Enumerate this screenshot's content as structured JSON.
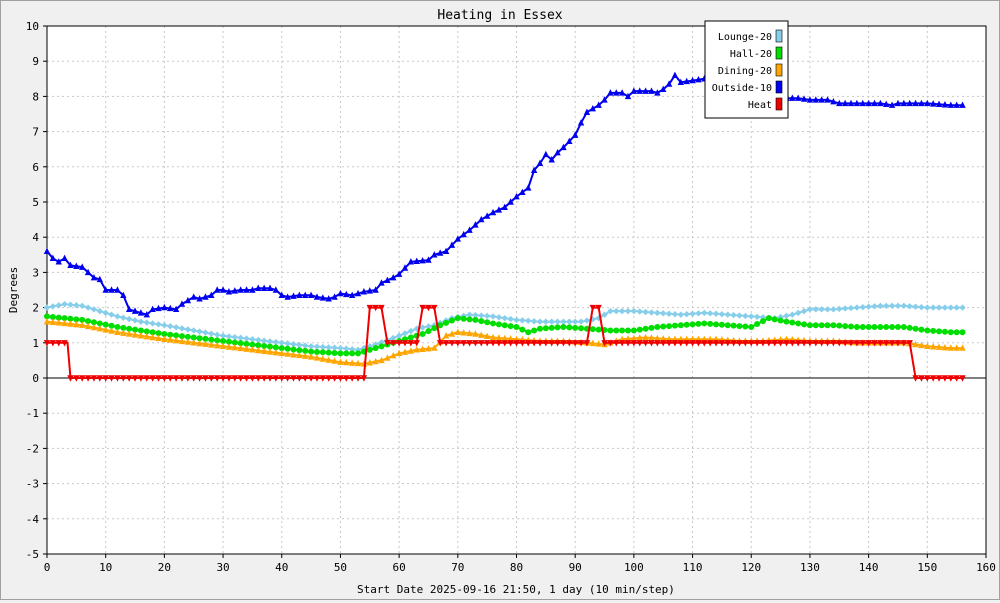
{
  "chart_data": {
    "type": "line",
    "title": "Heating in Essex",
    "xlabel": "Start Date 2025-09-16 21:50, 1 day (10 min/step)",
    "ylabel": "Degrees",
    "xlim": [
      0,
      160
    ],
    "ylim": [
      -5,
      10
    ],
    "xticks": [
      0,
      10,
      20,
      30,
      40,
      50,
      60,
      70,
      80,
      90,
      100,
      110,
      120,
      130,
      140,
      150,
      160
    ],
    "yticks": [
      -5,
      -4,
      -3,
      -2,
      -1,
      0,
      1,
      2,
      3,
      4,
      5,
      6,
      7,
      8,
      9,
      10
    ],
    "grid": true,
    "legend_position": "top-right",
    "series": [
      {
        "name": "Lounge-20",
        "color": "#87ceeb",
        "marker": "diamond",
        "points": [
          [
            0,
            2.0
          ],
          [
            3,
            2.1
          ],
          [
            6,
            2.05
          ],
          [
            9,
            1.9
          ],
          [
            12,
            1.75
          ],
          [
            16,
            1.6
          ],
          [
            20,
            1.5
          ],
          [
            25,
            1.35
          ],
          [
            30,
            1.2
          ],
          [
            35,
            1.1
          ],
          [
            40,
            1.0
          ],
          [
            45,
            0.9
          ],
          [
            50,
            0.85
          ],
          [
            53,
            0.8
          ],
          [
            56,
            0.95
          ],
          [
            60,
            1.2
          ],
          [
            63,
            1.4
          ],
          [
            66,
            1.5
          ],
          [
            69,
            1.7
          ],
          [
            72,
            1.8
          ],
          [
            76,
            1.75
          ],
          [
            80,
            1.65
          ],
          [
            84,
            1.6
          ],
          [
            88,
            1.6
          ],
          [
            91,
            1.6
          ],
          [
            94,
            1.7
          ],
          [
            96,
            1.9
          ],
          [
            100,
            1.9
          ],
          [
            104,
            1.85
          ],
          [
            108,
            1.8
          ],
          [
            112,
            1.85
          ],
          [
            116,
            1.8
          ],
          [
            120,
            1.75
          ],
          [
            124,
            1.7
          ],
          [
            127,
            1.8
          ],
          [
            130,
            1.95
          ],
          [
            134,
            1.95
          ],
          [
            138,
            2.0
          ],
          [
            142,
            2.05
          ],
          [
            146,
            2.05
          ],
          [
            150,
            2.0
          ],
          [
            154,
            2.0
          ],
          [
            156,
            2.0
          ]
        ]
      },
      {
        "name": "Hall-20",
        "color": "#00dd00",
        "marker": "circle",
        "points": [
          [
            0,
            1.75
          ],
          [
            3,
            1.7
          ],
          [
            6,
            1.65
          ],
          [
            9,
            1.55
          ],
          [
            12,
            1.45
          ],
          [
            16,
            1.35
          ],
          [
            20,
            1.25
          ],
          [
            25,
            1.15
          ],
          [
            30,
            1.05
          ],
          [
            35,
            0.95
          ],
          [
            40,
            0.85
          ],
          [
            45,
            0.75
          ],
          [
            50,
            0.7
          ],
          [
            53,
            0.7
          ],
          [
            56,
            0.85
          ],
          [
            60,
            1.05
          ],
          [
            64,
            1.25
          ],
          [
            67,
            1.5
          ],
          [
            70,
            1.7
          ],
          [
            73,
            1.65
          ],
          [
            76,
            1.55
          ],
          [
            80,
            1.45
          ],
          [
            82,
            1.3
          ],
          [
            84,
            1.4
          ],
          [
            88,
            1.45
          ],
          [
            92,
            1.4
          ],
          [
            96,
            1.35
          ],
          [
            100,
            1.35
          ],
          [
            104,
            1.45
          ],
          [
            108,
            1.5
          ],
          [
            112,
            1.55
          ],
          [
            116,
            1.5
          ],
          [
            120,
            1.45
          ],
          [
            123,
            1.7
          ],
          [
            126,
            1.6
          ],
          [
            130,
            1.5
          ],
          [
            134,
            1.5
          ],
          [
            138,
            1.45
          ],
          [
            142,
            1.45
          ],
          [
            146,
            1.45
          ],
          [
            150,
            1.35
          ],
          [
            154,
            1.3
          ],
          [
            156,
            1.3
          ]
        ]
      },
      {
        "name": "Dining-20",
        "color": "#ffa500",
        "marker": "triangle",
        "points": [
          [
            0,
            1.6
          ],
          [
            3,
            1.55
          ],
          [
            6,
            1.5
          ],
          [
            9,
            1.4
          ],
          [
            12,
            1.3
          ],
          [
            16,
            1.2
          ],
          [
            20,
            1.1
          ],
          [
            25,
            1.0
          ],
          [
            30,
            0.9
          ],
          [
            35,
            0.8
          ],
          [
            40,
            0.7
          ],
          [
            45,
            0.6
          ],
          [
            50,
            0.45
          ],
          [
            54,
            0.4
          ],
          [
            57,
            0.5
          ],
          [
            60,
            0.7
          ],
          [
            63,
            0.8
          ],
          [
            66,
            0.85
          ],
          [
            68,
            1.2
          ],
          [
            70,
            1.3
          ],
          [
            73,
            1.25
          ],
          [
            76,
            1.15
          ],
          [
            80,
            1.1
          ],
          [
            84,
            1.05
          ],
          [
            88,
            1.05
          ],
          [
            92,
            1.0
          ],
          [
            95,
            0.95
          ],
          [
            98,
            1.1
          ],
          [
            102,
            1.15
          ],
          [
            106,
            1.1
          ],
          [
            110,
            1.1
          ],
          [
            114,
            1.1
          ],
          [
            118,
            1.05
          ],
          [
            122,
            1.05
          ],
          [
            126,
            1.1
          ],
          [
            130,
            1.05
          ],
          [
            134,
            1.05
          ],
          [
            138,
            1.0
          ],
          [
            142,
            1.0
          ],
          [
            146,
            1.0
          ],
          [
            150,
            0.9
          ],
          [
            154,
            0.85
          ],
          [
            156,
            0.85
          ]
        ]
      },
      {
        "name": "Outside-10",
        "color": "#0000ee",
        "marker": "triangle",
        "points": [
          [
            0,
            3.6
          ],
          [
            1,
            3.4
          ],
          [
            2,
            3.3
          ],
          [
            3,
            3.4
          ],
          [
            4,
            3.2
          ],
          [
            6,
            3.15
          ],
          [
            7,
            3.0
          ],
          [
            8,
            2.85
          ],
          [
            9,
            2.8
          ],
          [
            10,
            2.5
          ],
          [
            12,
            2.5
          ],
          [
            13,
            2.35
          ],
          [
            14,
            1.95
          ],
          [
            16,
            1.85
          ],
          [
            17,
            1.8
          ],
          [
            18,
            1.95
          ],
          [
            20,
            2.0
          ],
          [
            22,
            1.95
          ],
          [
            23,
            2.1
          ],
          [
            24,
            2.2
          ],
          [
            25,
            2.3
          ],
          [
            26,
            2.25
          ],
          [
            28,
            2.35
          ],
          [
            29,
            2.5
          ],
          [
            30,
            2.5
          ],
          [
            31,
            2.45
          ],
          [
            33,
            2.5
          ],
          [
            35,
            2.5
          ],
          [
            36,
            2.55
          ],
          [
            38,
            2.55
          ],
          [
            39,
            2.5
          ],
          [
            40,
            2.35
          ],
          [
            41,
            2.3
          ],
          [
            43,
            2.35
          ],
          [
            45,
            2.35
          ],
          [
            46,
            2.3
          ],
          [
            48,
            2.25
          ],
          [
            49,
            2.3
          ],
          [
            50,
            2.4
          ],
          [
            52,
            2.35
          ],
          [
            54,
            2.45
          ],
          [
            56,
            2.5
          ],
          [
            57,
            2.7
          ],
          [
            59,
            2.85
          ],
          [
            60,
            2.95
          ],
          [
            62,
            3.3
          ],
          [
            65,
            3.35
          ],
          [
            66,
            3.5
          ],
          [
            68,
            3.6
          ],
          [
            70,
            3.95
          ],
          [
            72,
            4.2
          ],
          [
            74,
            4.5
          ],
          [
            76,
            4.7
          ],
          [
            78,
            4.85
          ],
          [
            80,
            5.15
          ],
          [
            82,
            5.4
          ],
          [
            83,
            5.9
          ],
          [
            84,
            6.1
          ],
          [
            85,
            6.35
          ],
          [
            86,
            6.2
          ],
          [
            87,
            6.4
          ],
          [
            88,
            6.55
          ],
          [
            90,
            6.9
          ],
          [
            91,
            7.25
          ],
          [
            92,
            7.55
          ],
          [
            94,
            7.75
          ],
          [
            95,
            7.9
          ],
          [
            96,
            8.1
          ],
          [
            98,
            8.1
          ],
          [
            99,
            8.0
          ],
          [
            100,
            8.15
          ],
          [
            103,
            8.15
          ],
          [
            104,
            8.1
          ],
          [
            105,
            8.2
          ],
          [
            106,
            8.35
          ],
          [
            107,
            8.6
          ],
          [
            108,
            8.4
          ],
          [
            110,
            8.45
          ],
          [
            112,
            8.5
          ],
          [
            114,
            8.5
          ],
          [
            116,
            8.2
          ],
          [
            118,
            8.1
          ],
          [
            120,
            8.05
          ],
          [
            122,
            8.0
          ],
          [
            125,
            7.95
          ],
          [
            128,
            7.95
          ],
          [
            130,
            7.9
          ],
          [
            133,
            7.9
          ],
          [
            135,
            7.8
          ],
          [
            140,
            7.8
          ],
          [
            142,
            7.8
          ],
          [
            144,
            7.75
          ],
          [
            145,
            7.8
          ],
          [
            150,
            7.8
          ],
          [
            154,
            7.75
          ],
          [
            156,
            7.75
          ]
        ]
      },
      {
        "name": "Heat",
        "color": "#ee0000",
        "marker": "invtriangle",
        "points": [
          [
            0,
            1
          ],
          [
            3.5,
            1
          ],
          [
            4,
            0
          ],
          [
            54,
            0
          ],
          [
            55,
            2
          ],
          [
            57,
            2
          ],
          [
            58,
            1
          ],
          [
            63,
            1
          ],
          [
            64,
            2
          ],
          [
            66,
            2
          ],
          [
            67,
            1
          ],
          [
            92,
            1
          ],
          [
            93,
            2
          ],
          [
            94,
            2
          ],
          [
            95,
            1
          ],
          [
            147,
            1
          ],
          [
            148,
            0
          ],
          [
            156,
            0
          ]
        ]
      }
    ]
  }
}
